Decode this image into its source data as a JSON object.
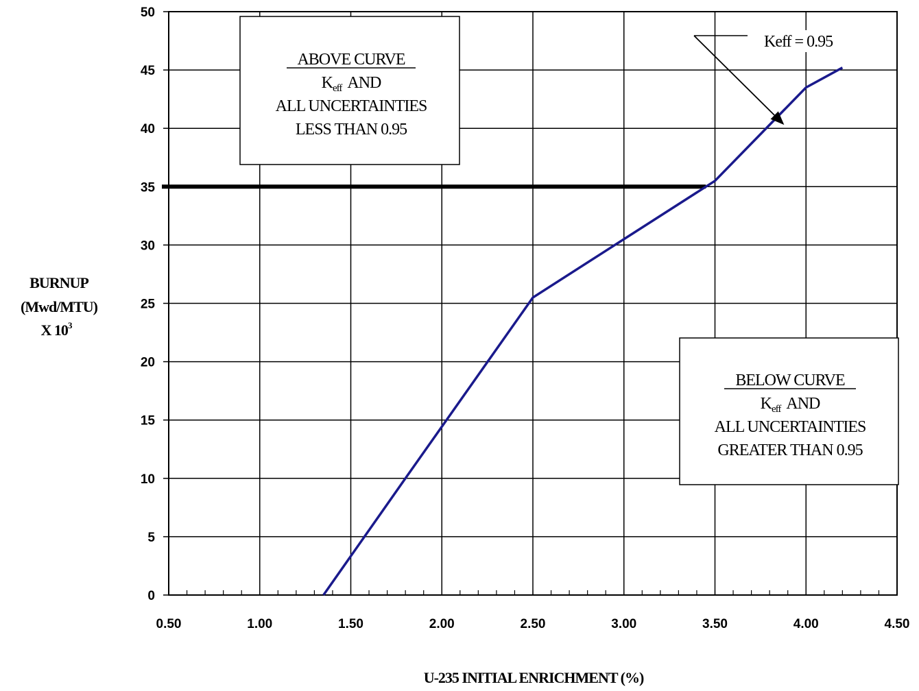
{
  "chart_data": {
    "type": "line",
    "xlabel": "U-235 INITIAL ENRICHMENT (%)",
    "ylabel_lines": [
      "BURNUP",
      "(Mwd/MTU)",
      "X 10"
    ],
    "ylabel_superscript": "3",
    "xlim": [
      0.5,
      4.5
    ],
    "ylim": [
      0,
      50
    ],
    "x_ticks": [
      "0.50",
      "1.00",
      "1.50",
      "2.00",
      "2.50",
      "3.00",
      "3.50",
      "4.00",
      "4.50"
    ],
    "y_ticks": [
      "0",
      "5",
      "10",
      "15",
      "20",
      "25",
      "30",
      "35",
      "40",
      "45",
      "50"
    ],
    "grid": true,
    "series": [
      {
        "color": "#1a1a8c",
        "x": [
          1.35,
          1.8,
          2.5,
          3.0,
          3.5,
          4.0,
          4.2
        ],
        "y": [
          0,
          10,
          25.5,
          30.5,
          35.5,
          43.5,
          45.2
        ]
      }
    ],
    "reference_line": {
      "y": 35,
      "x_start": 0.5,
      "x_end": 3.45,
      "color": "#000000"
    },
    "annotations": {
      "curve_label": {
        "text": "Keff = 0.95",
        "arrow_to": [
          3.88,
          40.3
        ]
      },
      "above_box": {
        "title": "ABOVE CURVE",
        "k_main": "K",
        "k_sub": "eff",
        "k_rest": "AND",
        "line3": "ALL UNCERTAINTIES",
        "line4": "LESS THAN 0.95"
      },
      "below_box": {
        "title": "BELOW CURVE",
        "k_main": "K",
        "k_sub": "eff",
        "k_rest": "AND",
        "line3": "ALL UNCERTAINTIES",
        "line4": "GREATER THAN 0.95"
      }
    }
  }
}
